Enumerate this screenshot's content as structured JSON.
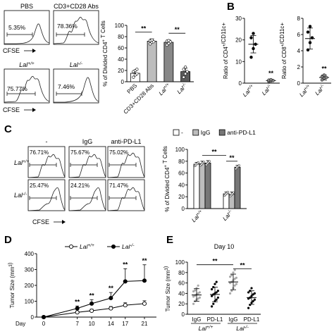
{
  "panels": {
    "A": {
      "letter": "",
      "histograms": [
        {
          "title": "PBS",
          "value": "5.35%",
          "xlabel": "CFSE"
        },
        {
          "title": "CD3+CD28 Abs",
          "value": "78.36%",
          "xlabel": ""
        },
        {
          "title": "Lal+/+",
          "value": "75.77%",
          "xlabel": "CFSE"
        },
        {
          "title": "Lal-/-",
          "value": "7.46%",
          "xlabel": ""
        }
      ]
    },
    "B": {
      "letter": "B"
    },
    "C": {
      "letter": "C",
      "columns": [
        "-",
        "IgG",
        "anti-PD-L1"
      ],
      "rows": [
        "Lal+/+",
        "Lal-/-"
      ],
      "values": [
        [
          "76.71%",
          "75.67%",
          "75.02%"
        ],
        [
          "25.47%",
          "24.21%",
          "71.47%"
        ]
      ],
      "xlabel": "CFSE"
    },
    "D": {
      "letter": "D"
    },
    "E": {
      "letter": "E"
    }
  },
  "chart_data": [
    {
      "id": "A-bar",
      "type": "bar",
      "categories": [
        "PBS",
        "CD3+CD28 Abs",
        "Lal+/+",
        "Lal-/-"
      ],
      "values": [
        15,
        72,
        70,
        18
      ],
      "errors": [
        5,
        4,
        4,
        6
      ],
      "colors": [
        "#ffffff",
        "#bdbdbd",
        "#888888",
        "#5a5a5a"
      ],
      "points": [
        [
          8,
          12,
          14,
          18,
          20,
          22
        ],
        [
          67,
          70,
          71,
          73,
          74
        ],
        [
          65,
          68,
          71,
          72,
          73
        ],
        [
          8,
          14,
          18,
          22,
          26
        ]
      ],
      "ylabel": "% of Divided CD4+ T Cells",
      "ylim": [
        0,
        100
      ],
      "yticks": [
        0,
        20,
        40,
        60,
        80,
        100
      ],
      "significance": [
        {
          "from": 0,
          "to": 1,
          "label": "**"
        },
        {
          "from": 2,
          "to": 3,
          "label": "**"
        }
      ]
    },
    {
      "id": "B-left",
      "type": "bar",
      "categories": [
        "Lal+/+",
        "Lal-/-"
      ],
      "values": [
        18,
        1.2
      ],
      "errors": [
        4,
        0.5
      ],
      "points": [
        [
          12,
          16,
          18,
          21,
          23
        ],
        [
          0.8,
          1.0,
          1.2,
          1.4,
          1.6
        ]
      ],
      "ylabel": "Ratio of CD4+/CD11c+",
      "ylim": [
        0,
        30
      ],
      "yticks": [
        0,
        10,
        20,
        30
      ],
      "significance_label": "**"
    },
    {
      "id": "B-right",
      "type": "bar",
      "categories": [
        "Lal+/+",
        "Lal-/-"
      ],
      "values": [
        5.5,
        0.7
      ],
      "errors": [
        1.3,
        0.3
      ],
      "points": [
        [
          4.1,
          5.0,
          5.6,
          6.3,
          7.0
        ],
        [
          0.4,
          0.6,
          0.7,
          0.8,
          1.0
        ]
      ],
      "ylabel": "Ratio of CD8+/CD11c+",
      "ylim": [
        0,
        8
      ],
      "yticks": [
        0,
        2,
        4,
        6,
        8
      ],
      "significance_label": "**"
    },
    {
      "id": "C-bar",
      "type": "bar",
      "groups": [
        "Lal+/+",
        "Lal-/-"
      ],
      "series": [
        {
          "name": "-",
          "color": "#ffffff",
          "values": [
            75,
            25
          ]
        },
        {
          "name": "IgG",
          "color": "#bdbdbd",
          "values": [
            76,
            24
          ]
        },
        {
          "name": "anti-PD-L1",
          "color": "#777777",
          "values": [
            77,
            70
          ]
        }
      ],
      "errors": [
        [
          3,
          3
        ],
        [
          4,
          4
        ],
        [
          4,
          3
        ]
      ],
      "ylabel": "% of Divided CD4+ T Cells",
      "ylim": [
        0,
        100
      ],
      "yticks": [
        0,
        20,
        40,
        60,
        80,
        100
      ],
      "significance": [
        "**",
        "**"
      ]
    },
    {
      "id": "D-line",
      "type": "line",
      "x": [
        0,
        7,
        10,
        14,
        17,
        21
      ],
      "xtick_labels": [
        "0",
        "7",
        "10",
        "14",
        "17",
        "21"
      ],
      "xlabel": "Day",
      "series": [
        {
          "name": "Lal+/+",
          "marker": "open",
          "values": [
            0,
            30,
            40,
            55,
            75,
            85
          ],
          "errors": [
            0,
            8,
            10,
            12,
            15,
            18
          ]
        },
        {
          "name": "Lal-/-",
          "marker": "filled",
          "values": [
            0,
            55,
            85,
            120,
            225,
            230
          ],
          "errors": [
            0,
            15,
            25,
            35,
            80,
            100
          ]
        }
      ],
      "significance": [
        {
          "x": 7,
          "label": "**"
        },
        {
          "x": 10,
          "label": "**"
        },
        {
          "x": 14,
          "label": "**"
        },
        {
          "x": 17,
          "label": "**"
        },
        {
          "x": 21,
          "label": "**"
        }
      ],
      "ylabel": "Tumor Size (mm3)",
      "ylim": [
        0,
        400
      ],
      "yticks": [
        0,
        100,
        200,
        300,
        400
      ]
    },
    {
      "id": "E-scatter",
      "type": "scatter",
      "title": "Day 10",
      "categories": [
        "IgG",
        "PD-L1",
        "IgG",
        "PD-L1"
      ],
      "group_labels": [
        "Lal+/+",
        "Lal-/-"
      ],
      "colors": [
        "#a9a9a9",
        "#000000",
        "#a9a9a9",
        "#000000"
      ],
      "means": [
        37,
        38,
        62,
        32
      ],
      "sds": [
        12,
        14,
        15,
        13
      ],
      "points": [
        [
          20,
          25,
          28,
          30,
          32,
          34,
          36,
          38,
          40,
          42,
          44,
          46,
          50,
          55
        ],
        [
          15,
          20,
          25,
          28,
          32,
          35,
          38,
          40,
          42,
          45,
          48,
          52,
          58,
          62
        ],
        [
          40,
          45,
          50,
          55,
          58,
          60,
          62,
          65,
          68,
          70,
          72,
          75,
          80,
          85
        ],
        [
          12,
          18,
          22,
          25,
          28,
          30,
          32,
          35,
          38,
          40,
          42,
          45,
          50
        ]
      ],
      "ylabel": "Tumor Size (mm3)",
      "ylim": [
        0,
        100
      ],
      "yticks": [
        0,
        20,
        40,
        60,
        80,
        100
      ],
      "significance": [
        {
          "from": 0,
          "to": 2,
          "label": "**"
        },
        {
          "from": 2,
          "to": 3,
          "label": "**"
        }
      ]
    }
  ]
}
